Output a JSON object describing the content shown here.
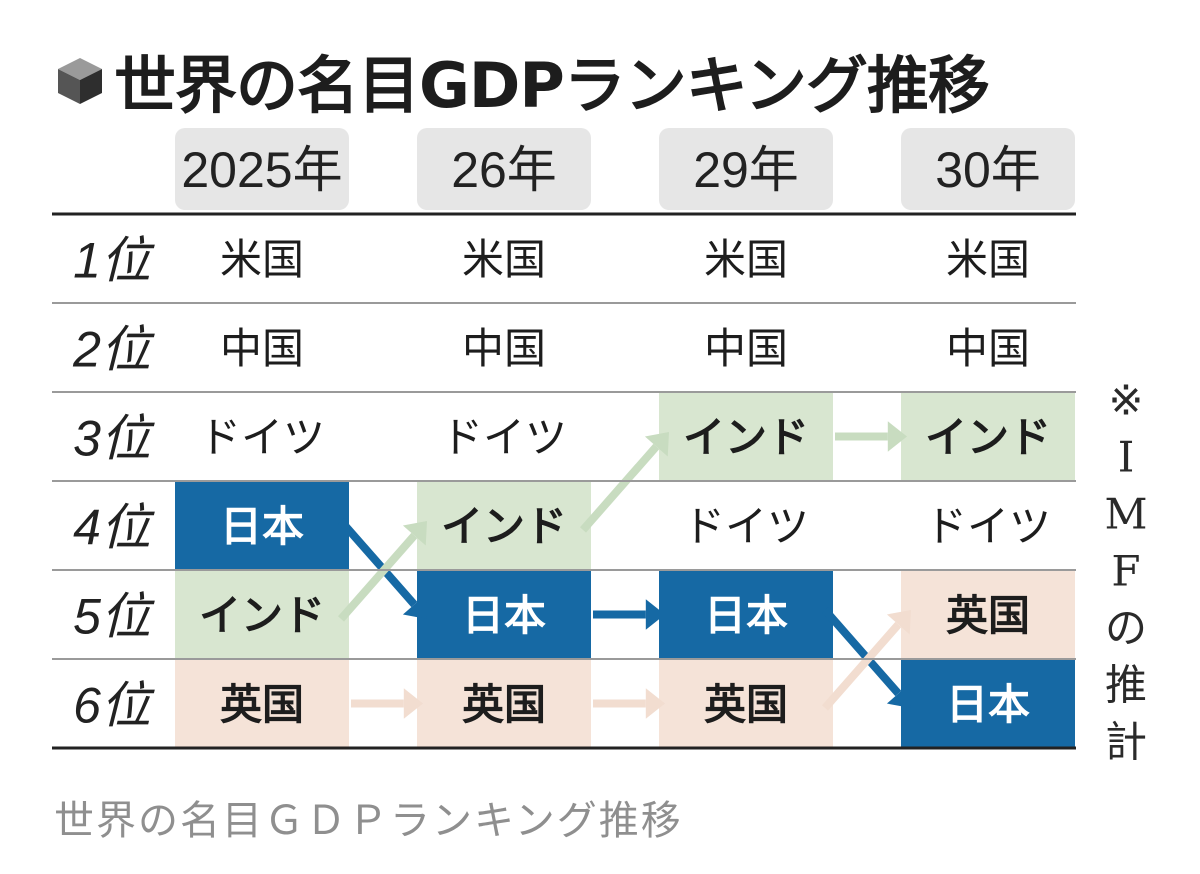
{
  "title": "世界の名目GDPランキング推移",
  "note": "※IMFの推計",
  "caption": "世界の名目ＧＤＰランキング推移",
  "colors": {
    "japan": "#1669a4",
    "india": "#d8e6d0",
    "uk": "#f5e3d8",
    "header": "#e6e6e6",
    "rule": "#333333",
    "japan_arrow": "#1669a4",
    "india_arrow": "#c8dcc0",
    "uk_arrow": "#f2ddd0"
  },
  "chart_data": {
    "type": "table",
    "title": "世界の名目GDPランキング推移",
    "columns": [
      "2025年",
      "26年",
      "29年",
      "30年"
    ],
    "rows": [
      "1位",
      "2位",
      "3位",
      "4位",
      "5位",
      "6位"
    ],
    "cells": [
      [
        "米国",
        "米国",
        "米国",
        "米国"
      ],
      [
        "中国",
        "中国",
        "中国",
        "中国"
      ],
      [
        "ドイツ",
        "ドイツ",
        "インド",
        "インド"
      ],
      [
        "日本",
        "インド",
        "ドイツ",
        "ドイツ"
      ],
      [
        "インド",
        "日本",
        "日本",
        "英国"
      ],
      [
        "英国",
        "英国",
        "英国",
        "日本"
      ]
    ],
    "highlight": {
      "日本": "japan",
      "インド": "india",
      "英国": "uk"
    }
  }
}
